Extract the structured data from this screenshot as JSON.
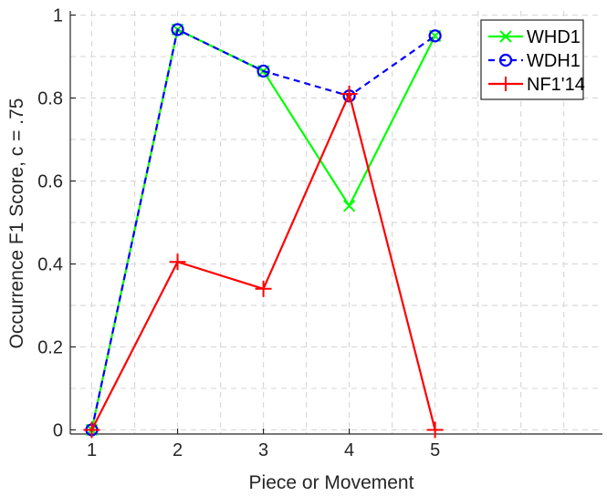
{
  "chart_data": {
    "type": "line",
    "title": "",
    "xlabel": "Piece or Movement",
    "ylabel": "Occurrence F1 Score, c = .75",
    "x": [
      1,
      2,
      3,
      4,
      5
    ],
    "xlim": [
      0.75,
      6.95
    ],
    "ylim": [
      -0.01,
      1.01
    ],
    "xticks": [
      1,
      2,
      3,
      4,
      5
    ],
    "xtick_labels": [
      "1",
      "2",
      "3",
      "4",
      "5"
    ],
    "yticks": [
      0,
      0.2,
      0.4,
      0.6,
      0.8,
      1
    ],
    "ytick_labels": [
      "0",
      "0.2",
      "0.4",
      "0.6",
      "0.8",
      "1"
    ],
    "grid": true,
    "legend_position": "top-right",
    "series": [
      {
        "name": "WHD1",
        "values": [
          0,
          0.965,
          0.865,
          0.54,
          0.95
        ],
        "color": "#00ff00",
        "line_style": "solid",
        "marker": "x"
      },
      {
        "name": "WDH1",
        "values": [
          0,
          0.965,
          0.865,
          0.805,
          0.95
        ],
        "color": "#0000ff",
        "line_style": "dashed",
        "marker": "o"
      },
      {
        "name": "NF1'14",
        "values": [
          0,
          0.405,
          0.34,
          0.81,
          0
        ],
        "color": "#ff0000",
        "line_style": "solid",
        "marker": "+"
      }
    ]
  }
}
